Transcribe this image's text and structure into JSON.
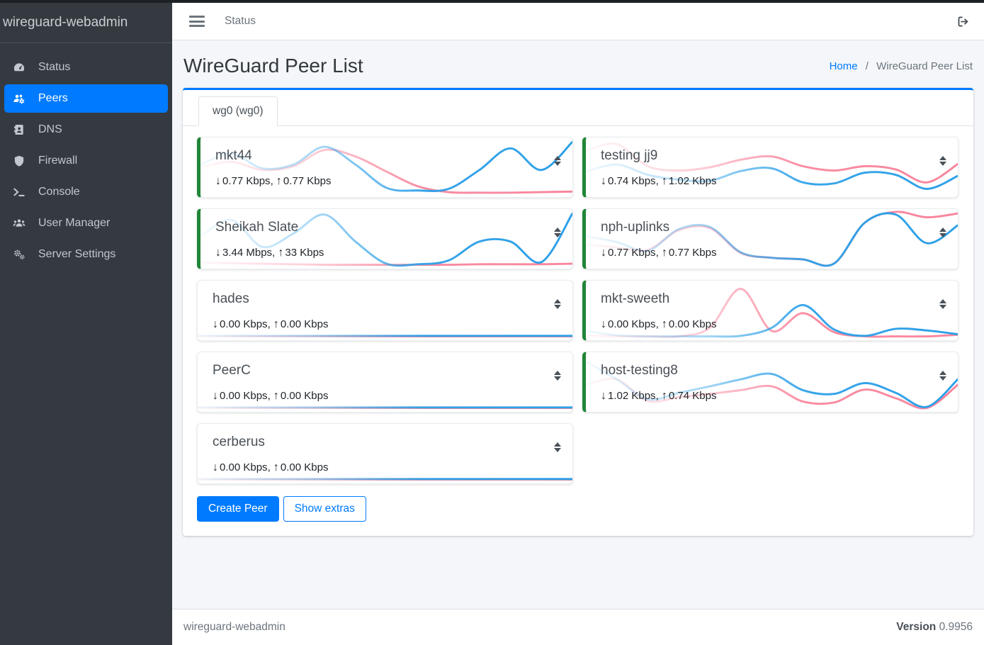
{
  "sidebar": {
    "brand": "wireguard-webadmin",
    "items": [
      {
        "label": "Status",
        "icon": "gauge-icon",
        "active": false
      },
      {
        "label": "Peers",
        "icon": "users-gear-icon",
        "active": true
      },
      {
        "label": "DNS",
        "icon": "address-book-icon",
        "active": false
      },
      {
        "label": "Firewall",
        "icon": "shield-icon",
        "active": false
      },
      {
        "label": "Console",
        "icon": "terminal-icon",
        "active": false
      },
      {
        "label": "User Manager",
        "icon": "users-icon",
        "active": false
      },
      {
        "label": "Server Settings",
        "icon": "gears-icon",
        "active": false
      }
    ]
  },
  "navbar": {
    "menu_item": "Status",
    "logout_icon": "sign-out-icon"
  },
  "page": {
    "title": "WireGuard Peer List",
    "breadcrumb": {
      "home": "Home",
      "separator": "/",
      "current": "WireGuard Peer List"
    },
    "tab": "wg0 (wg0)"
  },
  "peers": [
    {
      "name": "mkt44",
      "down": "0.77 Kbps",
      "up": "0.77 Kbps",
      "online": true,
      "spark": {
        "rx": [
          0.55,
          0.75,
          0.48,
          0.55,
          0.88,
          0.55,
          0.12,
          0.07,
          0.1,
          0.45,
          0.85,
          0.45,
          0.97
        ],
        "tx": [
          0.5,
          0.6,
          0.45,
          0.52,
          0.82,
          0.7,
          0.42,
          0.15,
          0.04,
          0.03,
          0.03,
          0.04,
          0.05
        ]
      }
    },
    {
      "name": "testing jj9",
      "down": "0.74 Kbps",
      "up": "1.02 Kbps",
      "online": true,
      "spark": {
        "rx": [
          0.42,
          0.55,
          0.36,
          0.27,
          0.25,
          0.43,
          0.48,
          0.22,
          0.2,
          0.4,
          0.36,
          0.1,
          0.34
        ],
        "tx": [
          0.8,
          0.93,
          0.52,
          0.44,
          0.5,
          0.64,
          0.7,
          0.52,
          0.44,
          0.52,
          0.46,
          0.22,
          0.56
        ]
      }
    },
    {
      "name": "Sheikah Slate",
      "down": "3.44 Mbps",
      "up": "33 Kbps",
      "online": true,
      "spark": {
        "rx": [
          0.55,
          0.85,
          0.35,
          0.6,
          0.95,
          0.45,
          0.04,
          0.03,
          0.1,
          0.45,
          0.45,
          0.07,
          0.97
        ],
        "tx": [
          0.06,
          0.05,
          0.04,
          0.03,
          0.02,
          0.02,
          0.02,
          0.02,
          0.02,
          0.03,
          0.03,
          0.03,
          0.04
        ]
      }
    },
    {
      "name": "nph-uplinks",
      "down": "0.77 Kbps",
      "up": "0.77 Kbps",
      "online": true,
      "spark": {
        "rx": [
          0.55,
          0.44,
          0.28,
          0.68,
          0.72,
          0.25,
          0.15,
          0.12,
          0.04,
          0.8,
          0.95,
          0.42,
          0.75
        ],
        "tx": [
          0.4,
          0.34,
          0.3,
          0.66,
          0.7,
          0.24,
          0.15,
          0.12,
          0.04,
          0.8,
          1.0,
          0.9,
          0.97
        ]
      }
    },
    {
      "name": "hades",
      "down": "0.00 Kbps",
      "up": "0.00 Kbps",
      "online": false,
      "spark": {
        "rx": [
          0.03,
          0.03,
          0.03,
          0.03,
          0.03,
          0.03,
          0.03,
          0.03,
          0.03,
          0.03,
          0.03,
          0.03,
          0.03
        ],
        "tx": [
          0.02,
          0.02,
          0.02,
          0.02,
          0.02,
          0.02,
          0.02,
          0.02,
          0.02,
          0.02,
          0.02,
          0.02,
          0.02
        ]
      }
    },
    {
      "name": "mkt-sweeth",
      "down": "0.00 Kbps",
      "up": "0.00 Kbps",
      "online": true,
      "spark": {
        "rx": [
          0.12,
          0.04,
          0.02,
          0.02,
          0.02,
          0.03,
          0.18,
          0.6,
          0.15,
          0.03,
          0.16,
          0.13,
          0.06
        ],
        "tx": [
          0.04,
          0.02,
          0.02,
          0.02,
          0.18,
          0.9,
          0.12,
          0.45,
          0.1,
          0.02,
          0.02,
          0.02,
          0.05
        ]
      }
    },
    {
      "name": "PeerC",
      "down": "0.00 Kbps",
      "up": "0.00 Kbps",
      "online": false,
      "spark": {
        "rx": [
          0.03,
          0.03,
          0.03,
          0.03,
          0.03,
          0.03,
          0.03,
          0.03,
          0.03,
          0.03,
          0.03,
          0.03,
          0.03
        ],
        "tx": [
          0.02,
          0.02,
          0.02,
          0.02,
          0.02,
          0.02,
          0.02,
          0.02,
          0.02,
          0.02,
          0.02,
          0.02,
          0.02
        ]
      }
    },
    {
      "name": "host-testing8",
      "down": "1.02 Kbps",
      "up": "0.74 Kbps",
      "online": true,
      "spark": {
        "rx": [
          0.88,
          0.55,
          0.18,
          0.3,
          0.42,
          0.55,
          0.65,
          0.35,
          0.28,
          0.48,
          0.3,
          0.04,
          0.55
        ],
        "tx": [
          0.45,
          0.55,
          0.15,
          0.22,
          0.28,
          0.35,
          0.42,
          0.14,
          0.12,
          0.36,
          0.2,
          0.02,
          0.45
        ]
      }
    },
    {
      "name": "cerberus",
      "down": "0.00 Kbps",
      "up": "0.00 Kbps",
      "online": false,
      "spark": {
        "rx": [
          0.03,
          0.03,
          0.03,
          0.03,
          0.03,
          0.03,
          0.03,
          0.03,
          0.03,
          0.03,
          0.03,
          0.03,
          0.03
        ],
        "tx": [
          0.02,
          0.02,
          0.02,
          0.02,
          0.02,
          0.02,
          0.02,
          0.02,
          0.02,
          0.02,
          0.02,
          0.02,
          0.02
        ]
      }
    }
  ],
  "buttons": {
    "create_peer": "Create Peer",
    "show_extras": "Show extras"
  },
  "footer": {
    "brand": "wireguard-webadmin",
    "version_label": "Version",
    "version": "0.9956"
  },
  "colors": {
    "accent": "#007bff",
    "online_green": "#208637",
    "spark_rx": "#2da0e8",
    "spark_tx": "#f9859c",
    "sidebar_bg": "#343a40",
    "content_bg": "#f4f6f9"
  }
}
